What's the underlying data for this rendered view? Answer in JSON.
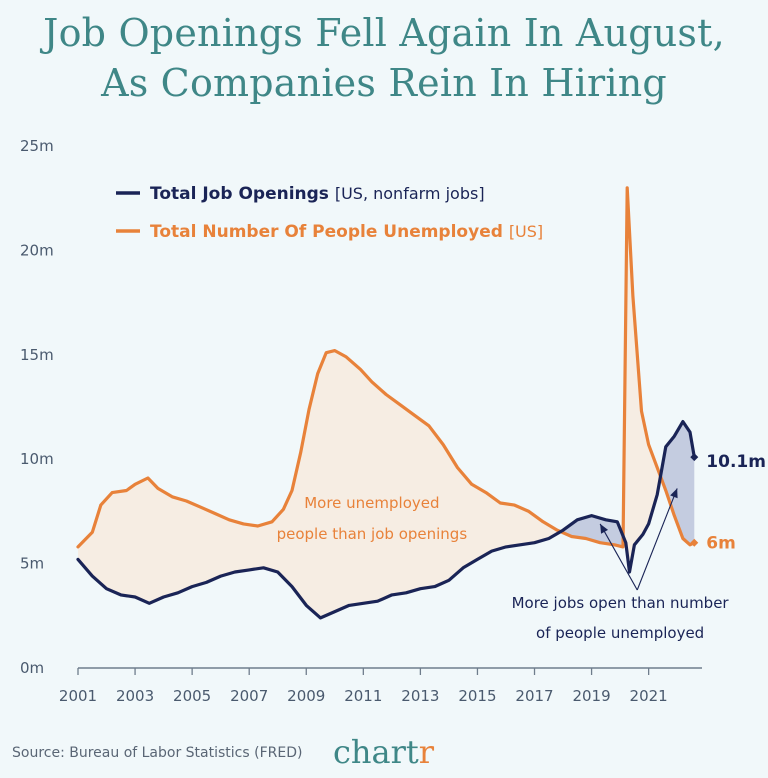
{
  "title": {
    "line1": "Job Openings Fell Again In August,",
    "line2": "As Companies Rein In Hiring"
  },
  "source": "Source: Bureau of Labor Statistics (FRED)",
  "logo": {
    "main": "chart",
    "accent": "r"
  },
  "colors": {
    "openings": "#1a2456",
    "unemployed": "#e8823a",
    "fill_unemployed": "#f6ede3",
    "fill_openings": "#bcc4da",
    "title": "#3f8787",
    "background": "#f1f8fa"
  },
  "chart_data": {
    "type": "line",
    "title": "Job Openings Fell Again In August, As Companies Rein In Hiring",
    "xlabel": "",
    "ylabel": "",
    "xlim": [
      2001,
      2022.8
    ],
    "ylim": [
      0,
      25
    ],
    "x_ticks": [
      "2001",
      "2003",
      "2005",
      "2007",
      "2009",
      "2011",
      "2013",
      "2015",
      "2017",
      "2019",
      "2021"
    ],
    "y_ticks": [
      "0m",
      "5m",
      "10m",
      "15m",
      "20m",
      "25m"
    ],
    "grid": false,
    "legend_position": "top-left",
    "legend": [
      {
        "name": "Total Job Openings",
        "note": "[US, nonfarm jobs]"
      },
      {
        "name": "Total Number Of People Unemployed",
        "note": "[US]"
      }
    ],
    "series": [
      {
        "name": "Total Job Openings",
        "unit": "millions",
        "points": [
          [
            2001.0,
            5.2
          ],
          [
            2001.5,
            4.4
          ],
          [
            2002.0,
            3.8
          ],
          [
            2002.5,
            3.5
          ],
          [
            2003.0,
            3.4
          ],
          [
            2003.5,
            3.1
          ],
          [
            2004.0,
            3.4
          ],
          [
            2004.5,
            3.6
          ],
          [
            2005.0,
            3.9
          ],
          [
            2005.5,
            4.1
          ],
          [
            2006.0,
            4.4
          ],
          [
            2006.5,
            4.6
          ],
          [
            2007.0,
            4.7
          ],
          [
            2007.5,
            4.8
          ],
          [
            2008.0,
            4.6
          ],
          [
            2008.5,
            3.9
          ],
          [
            2009.0,
            3.0
          ],
          [
            2009.5,
            2.4
          ],
          [
            2010.0,
            2.7
          ],
          [
            2010.5,
            3.0
          ],
          [
            2011.0,
            3.1
          ],
          [
            2011.5,
            3.2
          ],
          [
            2012.0,
            3.5
          ],
          [
            2012.5,
            3.6
          ],
          [
            2013.0,
            3.8
          ],
          [
            2013.5,
            3.9
          ],
          [
            2014.0,
            4.2
          ],
          [
            2014.5,
            4.8
          ],
          [
            2015.0,
            5.2
          ],
          [
            2015.5,
            5.6
          ],
          [
            2016.0,
            5.8
          ],
          [
            2016.5,
            5.9
          ],
          [
            2017.0,
            6.0
          ],
          [
            2017.5,
            6.2
          ],
          [
            2018.0,
            6.6
          ],
          [
            2018.5,
            7.1
          ],
          [
            2019.0,
            7.3
          ],
          [
            2019.5,
            7.1
          ],
          [
            2019.9,
            7.0
          ],
          [
            2020.2,
            6.0
          ],
          [
            2020.33,
            4.6
          ],
          [
            2020.5,
            5.9
          ],
          [
            2020.8,
            6.4
          ],
          [
            2021.0,
            6.9
          ],
          [
            2021.3,
            8.3
          ],
          [
            2021.6,
            10.6
          ],
          [
            2021.9,
            11.1
          ],
          [
            2022.2,
            11.8
          ],
          [
            2022.45,
            11.3
          ],
          [
            2022.6,
            10.1
          ]
        ]
      },
      {
        "name": "Total Number Of People Unemployed",
        "unit": "millions",
        "points": [
          [
            2001.0,
            5.8
          ],
          [
            2001.5,
            6.5
          ],
          [
            2001.8,
            7.8
          ],
          [
            2002.2,
            8.4
          ],
          [
            2002.7,
            8.5
          ],
          [
            2003.0,
            8.8
          ],
          [
            2003.45,
            9.1
          ],
          [
            2003.8,
            8.6
          ],
          [
            2004.3,
            8.2
          ],
          [
            2004.8,
            8.0
          ],
          [
            2005.3,
            7.7
          ],
          [
            2005.8,
            7.4
          ],
          [
            2006.3,
            7.1
          ],
          [
            2006.8,
            6.9
          ],
          [
            2007.3,
            6.8
          ],
          [
            2007.8,
            7.0
          ],
          [
            2008.2,
            7.6
          ],
          [
            2008.5,
            8.5
          ],
          [
            2008.8,
            10.3
          ],
          [
            2009.1,
            12.4
          ],
          [
            2009.4,
            14.1
          ],
          [
            2009.7,
            15.1
          ],
          [
            2010.0,
            15.2
          ],
          [
            2010.4,
            14.9
          ],
          [
            2010.9,
            14.3
          ],
          [
            2011.3,
            13.7
          ],
          [
            2011.8,
            13.1
          ],
          [
            2012.3,
            12.6
          ],
          [
            2012.8,
            12.1
          ],
          [
            2013.3,
            11.6
          ],
          [
            2013.8,
            10.7
          ],
          [
            2014.3,
            9.6
          ],
          [
            2014.8,
            8.8
          ],
          [
            2015.3,
            8.4
          ],
          [
            2015.8,
            7.9
          ],
          [
            2016.3,
            7.8
          ],
          [
            2016.8,
            7.5
          ],
          [
            2017.3,
            7.0
          ],
          [
            2017.8,
            6.6
          ],
          [
            2018.3,
            6.3
          ],
          [
            2018.8,
            6.2
          ],
          [
            2019.3,
            6.0
          ],
          [
            2019.8,
            5.9
          ],
          [
            2020.1,
            5.8
          ],
          [
            2020.25,
            23.0
          ],
          [
            2020.45,
            17.8
          ],
          [
            2020.75,
            12.3
          ],
          [
            2021.0,
            10.7
          ],
          [
            2021.3,
            9.6
          ],
          [
            2021.6,
            8.5
          ],
          [
            2021.9,
            7.3
          ],
          [
            2022.2,
            6.2
          ],
          [
            2022.45,
            5.9
          ],
          [
            2022.6,
            6.0
          ]
        ]
      }
    ],
    "end_labels": [
      {
        "series": "Total Job Openings",
        "text": "10.1m"
      },
      {
        "series": "Total Number Of People Unemployed",
        "text": "6m"
      }
    ],
    "annotations": [
      {
        "lines": [
          "More unemployed",
          "people than job openings"
        ]
      },
      {
        "lines": [
          "More jobs open than number",
          "of people unemployed"
        ]
      }
    ]
  }
}
